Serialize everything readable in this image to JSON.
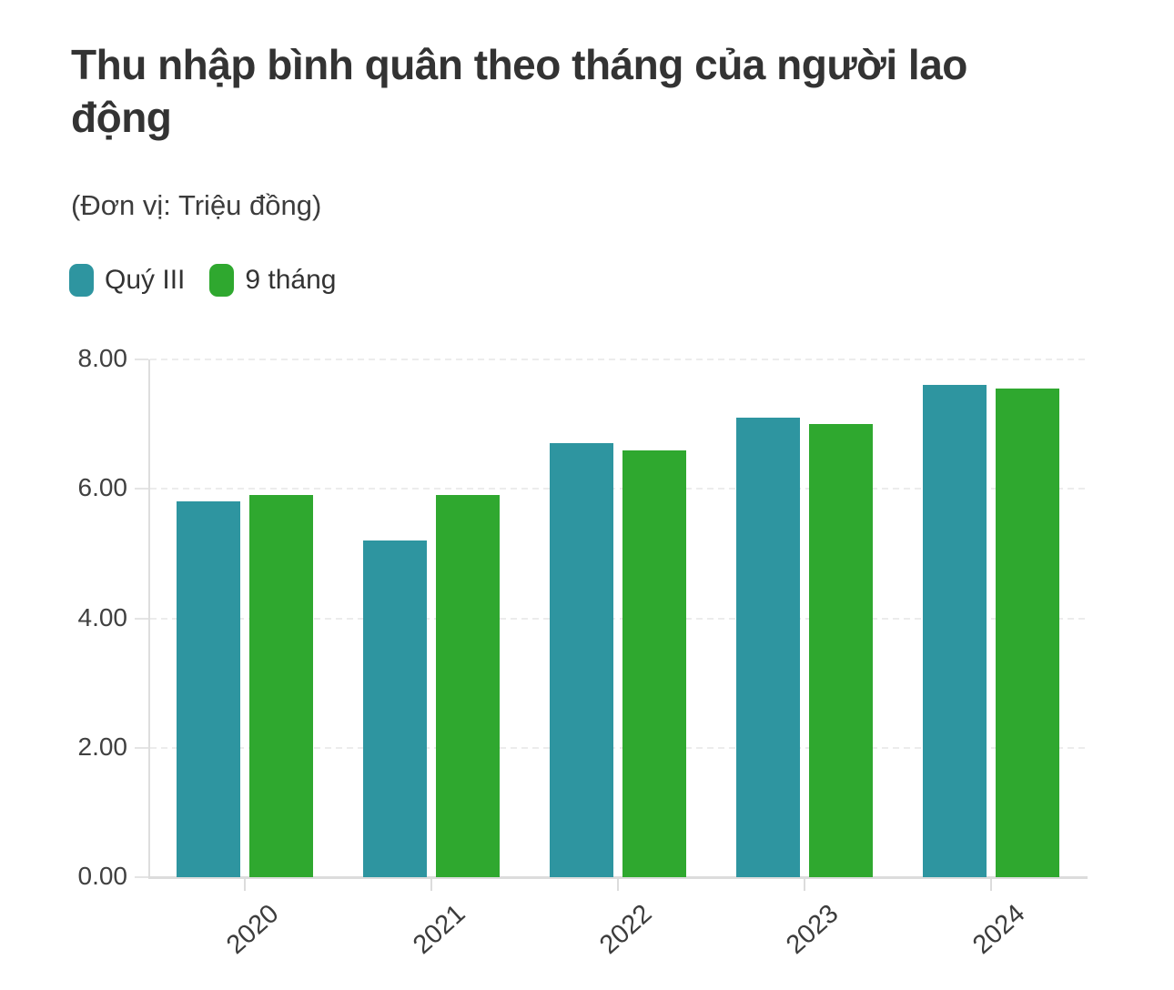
{
  "header": {
    "title": "Thu nhập bình quân theo tháng của người lao động",
    "subtitle": "(Đơn vị: Triệu đồng)"
  },
  "legend": {
    "items": [
      {
        "label": "Quý III",
        "color": "#2E95A0"
      },
      {
        "label": "9 tháng",
        "color": "#2FA82F"
      }
    ]
  },
  "chart_data": {
    "type": "bar",
    "title": "Thu nhập bình quân theo tháng của người lao động",
    "subtitle": "(Đơn vị: Triệu đồng)",
    "unit": "Triệu đồng",
    "categories": [
      "2020",
      "2021",
      "2022",
      "2023",
      "2024"
    ],
    "series": [
      {
        "name": "Quý III",
        "color": "#2E95A0",
        "values": [
          5.8,
          5.2,
          6.7,
          7.1,
          7.6
        ]
      },
      {
        "name": "9 tháng",
        "color": "#2FA82F",
        "values": [
          5.9,
          5.9,
          6.6,
          7.0,
          7.55
        ]
      }
    ],
    "ylim": [
      0,
      8
    ],
    "y_tick_values": [
      8,
      6,
      4,
      2,
      0
    ],
    "y_tick_labels": [
      "8.00",
      "6.00",
      "4.00",
      "2.00",
      "0.00"
    ],
    "grid": "horizontal-dashed",
    "legend_position": "top-left",
    "x_label_rotation_deg": -42
  }
}
